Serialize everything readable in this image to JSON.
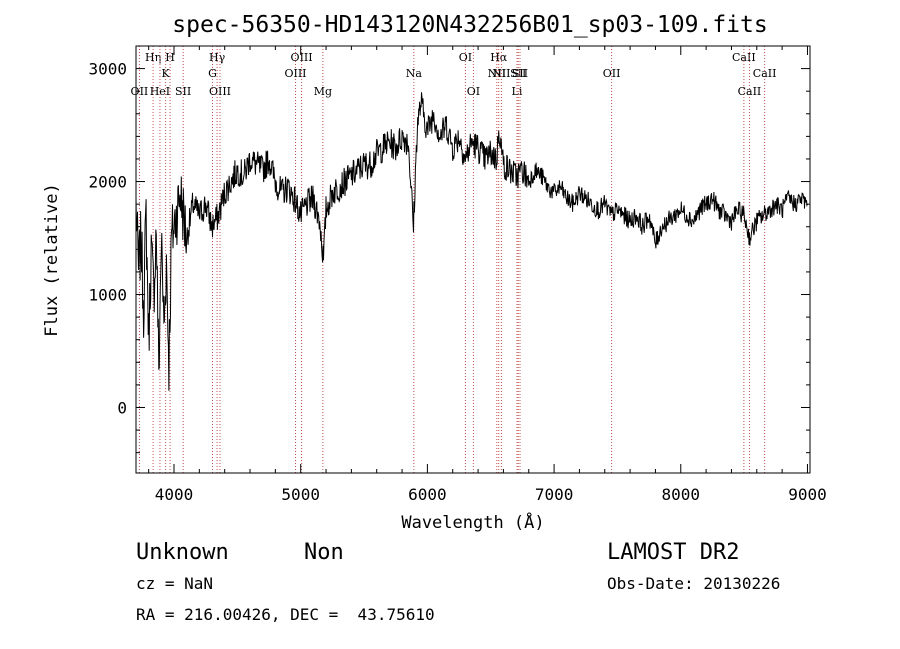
{
  "title": "spec-56350-HD143120N432256B01_sp03-109.fits",
  "footer": {
    "class_label": "Unknown",
    "subclass_label": "Non",
    "cz_text": "cz = NaN",
    "coords_text": "RA = 216.00426, DEC =  43.75610",
    "survey_text": "LAMOST DR2",
    "obsdate_text": "Obs-Date: 20130226"
  },
  "chart_data": {
    "type": "line",
    "title": "spec-56350-HD143120N432256B01_sp03-109.fits",
    "xlabel": "Wavelength (Å)",
    "ylabel": "Flux (relative)",
    "xlim": [
      3700,
      9020
    ],
    "ylim": [
      -580,
      3200
    ],
    "x_ticks": [
      4000,
      5000,
      6000,
      7000,
      8000,
      9000
    ],
    "y_ticks": [
      0,
      1000,
      2000,
      3000
    ],
    "grid": false,
    "legend": "none",
    "line_color": "#000000",
    "marker_color": "#c0504d",
    "series": [
      {
        "x": [
          3700,
          3720,
          3740,
          3760,
          3780,
          3800,
          3820,
          3840,
          3860,
          3880,
          3900,
          3920,
          3940,
          3960,
          3980,
          4000,
          4050,
          4100,
          4150,
          4200,
          4250,
          4300,
          4350,
          4400,
          4450,
          4500,
          4550,
          4600,
          4650,
          4700,
          4750,
          4800,
          4850,
          4900,
          4950,
          5000,
          5050,
          5100,
          5150,
          5180,
          5200,
          5250,
          5300,
          5350,
          5400,
          5450,
          5500,
          5550,
          5600,
          5650,
          5700,
          5750,
          5800,
          5850,
          5890,
          5920,
          5950,
          6000,
          6050,
          6100,
          6150,
          6200,
          6250,
          6300,
          6350,
          6400,
          6450,
          6500,
          6550,
          6563,
          6600,
          6650,
          6700,
          6750,
          6800,
          6850,
          6900,
          6950,
          7000,
          7050,
          7100,
          7150,
          7200,
          7250,
          7300,
          7350,
          7400,
          7450,
          7500,
          7550,
          7600,
          7650,
          7700,
          7750,
          7800,
          7850,
          7900,
          7950,
          8000,
          8050,
          8100,
          8150,
          8200,
          8250,
          8300,
          8350,
          8400,
          8450,
          8500,
          8542,
          8600,
          8650,
          8700,
          8750,
          8800,
          8850,
          8900,
          8950,
          9000
        ],
        "y": [
          1800,
          1200,
          1500,
          900,
          1700,
          600,
          1400,
          1000,
          1600,
          300,
          1500,
          700,
          1300,
          400,
          1500,
          1600,
          1900,
          1500,
          1800,
          1700,
          1800,
          1600,
          1700,
          1900,
          2000,
          2100,
          2050,
          2200,
          2150,
          2100,
          2200,
          2000,
          1900,
          1950,
          1850,
          1700,
          1800,
          1850,
          1650,
          1300,
          1750,
          1900,
          1950,
          2000,
          2050,
          2100,
          2150,
          2150,
          2250,
          2300,
          2350,
          2300,
          2400,
          2350,
          1600,
          2500,
          2700,
          2450,
          2600,
          2400,
          2500,
          2300,
          2400,
          2200,
          2350,
          2300,
          2200,
          2250,
          2200,
          2500,
          2150,
          2100,
          2050,
          2100,
          2000,
          2100,
          2050,
          1950,
          1900,
          1950,
          1850,
          1800,
          1900,
          1850,
          1800,
          1750,
          1800,
          1700,
          1750,
          1700,
          1650,
          1700,
          1600,
          1700,
          1450,
          1600,
          1650,
          1700,
          1750,
          1700,
          1650,
          1750,
          1800,
          1850,
          1750,
          1700,
          1650,
          1750,
          1700,
          1500,
          1650,
          1700,
          1750,
          1800,
          1750,
          1850,
          1800,
          1850,
          1800
        ]
      }
    ],
    "line_markers": [
      {
        "wl": 3727,
        "label": "OII",
        "row": 2
      },
      {
        "wl": 3835,
        "label": "Hη",
        "row": 0
      },
      {
        "wl": 3889,
        "label": "HeI",
        "row": 2
      },
      {
        "wl": 3934,
        "label": "K",
        "row": 1
      },
      {
        "wl": 3969,
        "label": "H",
        "row": 0
      },
      {
        "wl": 4072,
        "label": "SII",
        "row": 2
      },
      {
        "wl": 4304,
        "label": "G",
        "row": 1
      },
      {
        "wl": 4340,
        "label": "Hγ",
        "row": 0
      },
      {
        "wl": 4363,
        "label": "OIII",
        "row": 2
      },
      {
        "wl": 4959,
        "label": "OIII",
        "row": 1
      },
      {
        "wl": 5007,
        "label": "OIII",
        "row": 0
      },
      {
        "wl": 5175,
        "label": "Mg",
        "row": 2
      },
      {
        "wl": 5893,
        "label": "Na",
        "row": 1
      },
      {
        "wl": 6300,
        "label": "OI",
        "row": 0
      },
      {
        "wl": 6363,
        "label": "OI",
        "row": 2
      },
      {
        "wl": 6548,
        "label": "NII",
        "row": 1
      },
      {
        "wl": 6563,
        "label": "Hα",
        "row": 0
      },
      {
        "wl": 6584,
        "label": "NII",
        "row": 1
      },
      {
        "wl": 6707,
        "label": "Li",
        "row": 2
      },
      {
        "wl": 6717,
        "label": "SII",
        "row": 1
      },
      {
        "wl": 6731,
        "label": "SII",
        "row": 1
      },
      {
        "wl": 7454,
        "label": "OII",
        "row": 1
      },
      {
        "wl": 8498,
        "label": "CaII",
        "row": 0
      },
      {
        "wl": 8542,
        "label": "CaII",
        "row": 2
      },
      {
        "wl": 8662,
        "label": "CaII",
        "row": 1
      }
    ]
  }
}
